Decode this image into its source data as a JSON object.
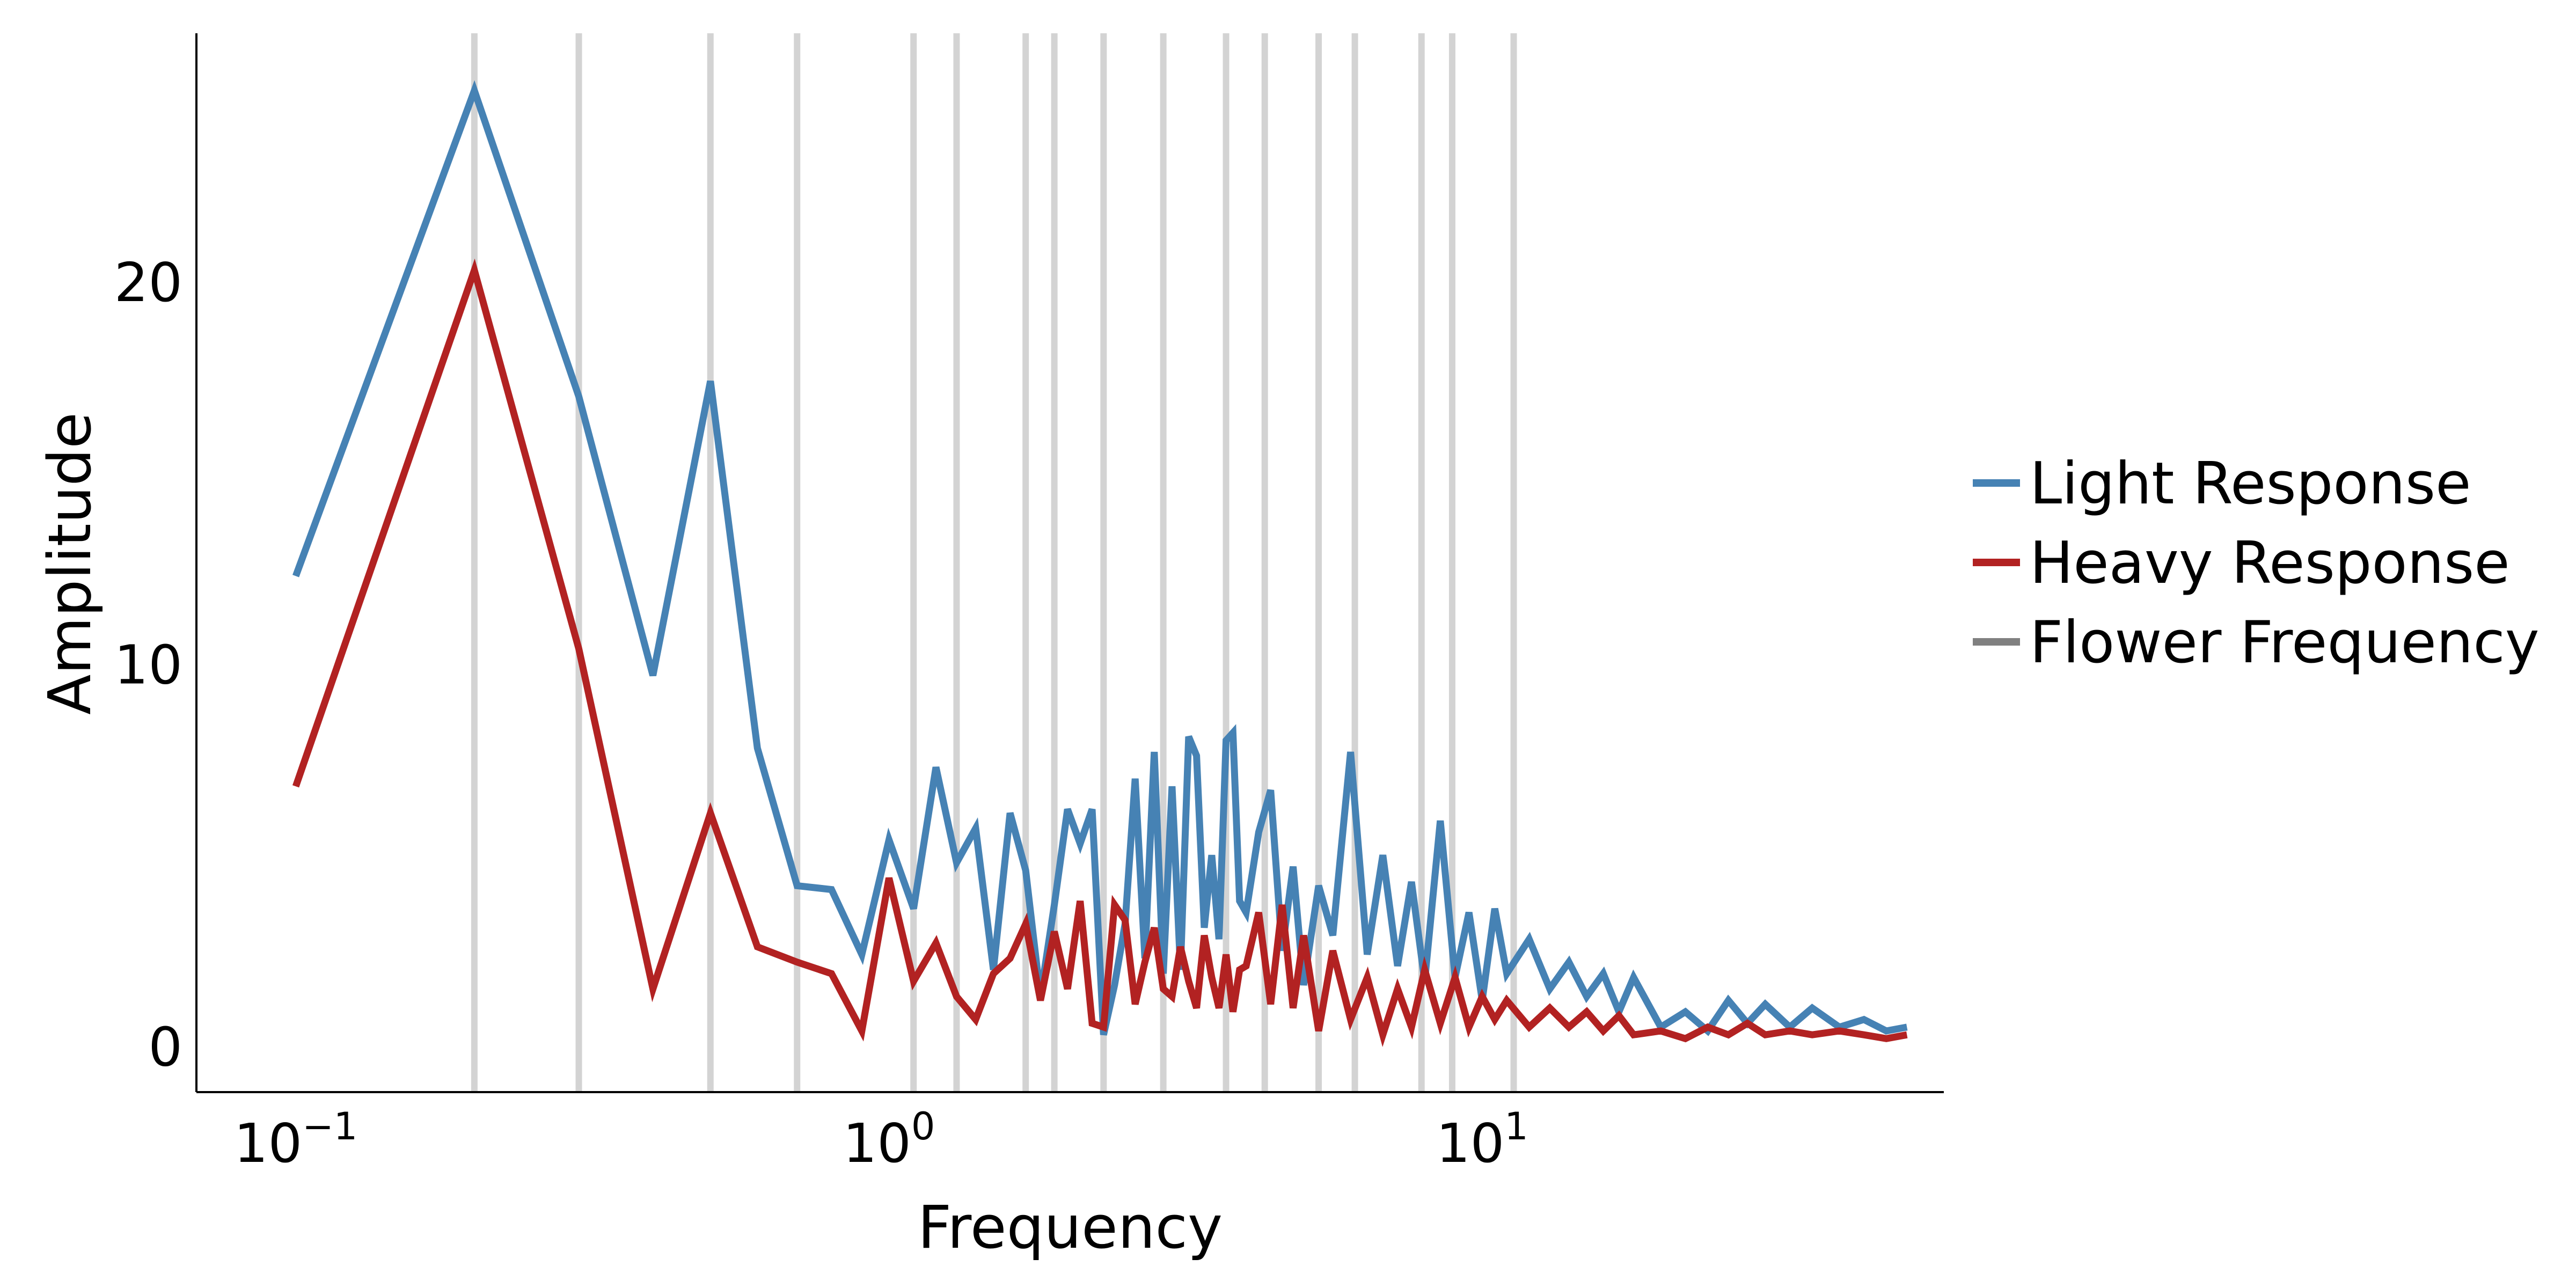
{
  "chart_data": {
    "type": "line",
    "x_scale": "log",
    "xlabel": "Frequency",
    "ylabel": "Amplitude",
    "xlim": [
      0.068,
      60
    ],
    "ylim": [
      -1.2,
      26.5
    ],
    "x_ticks": [
      {
        "value": 0.1,
        "base": "10",
        "exp": "−1"
      },
      {
        "value": 1,
        "base": "10",
        "exp": "0"
      },
      {
        "value": 10,
        "base": "10",
        "exp": "1"
      }
    ],
    "y_ticks": [
      0,
      10,
      20
    ],
    "grid": false,
    "legend_position": "right",
    "flower_frequencies": [
      0.2,
      0.3,
      0.5,
      0.7,
      1.1,
      1.3,
      1.7,
      1.9,
      2.3,
      2.9,
      3.7,
      4.3,
      5.3,
      6.1,
      7.9,
      8.9,
      11.3
    ],
    "series": [
      {
        "name": "Light Response",
        "color": "#4682b4",
        "x": [
          0.1,
          0.2,
          0.3,
          0.4,
          0.5,
          0.6,
          0.7,
          0.8,
          0.9,
          1.0,
          1.1,
          1.2,
          1.3,
          1.4,
          1.5,
          1.6,
          1.7,
          1.8,
          1.9,
          2.0,
          2.1,
          2.2,
          2.3,
          2.4,
          2.5,
          2.6,
          2.7,
          2.8,
          2.9,
          3.0,
          3.1,
          3.2,
          3.3,
          3.4,
          3.5,
          3.6,
          3.7,
          3.8,
          3.9,
          4.0,
          4.2,
          4.4,
          4.6,
          4.8,
          5.0,
          5.3,
          5.6,
          6.0,
          6.4,
          6.8,
          7.2,
          7.6,
          8.0,
          8.5,
          9.0,
          9.5,
          10.0,
          10.5,
          11.0,
          12.0,
          13.0,
          14.0,
          15.0,
          16.0,
          17.0,
          18.0,
          20.0,
          22.0,
          24.0,
          26.0,
          28.0,
          30.0,
          33.0,
          36.0,
          40.0,
          44.0,
          48.0,
          52.0
        ],
        "values": [
          12.3,
          25.0,
          17.0,
          9.7,
          17.4,
          7.8,
          4.2,
          4.1,
          2.4,
          5.4,
          3.6,
          7.3,
          4.8,
          5.7,
          2.0,
          6.1,
          4.6,
          1.3,
          3.7,
          6.2,
          5.3,
          6.2,
          0.3,
          1.6,
          3.2,
          7.0,
          2.3,
          7.7,
          1.9,
          6.8,
          2.0,
          8.1,
          7.6,
          3.1,
          5.0,
          2.8,
          8.0,
          8.2,
          3.8,
          3.5,
          5.6,
          6.7,
          2.5,
          4.7,
          1.6,
          4.2,
          2.9,
          7.7,
          2.4,
          5.0,
          2.1,
          4.3,
          1.7,
          5.9,
          1.8,
          3.5,
          1.2,
          3.6,
          1.9,
          2.8,
          1.5,
          2.2,
          1.3,
          1.9,
          0.9,
          1.8,
          0.5,
          0.9,
          0.4,
          1.2,
          0.6,
          1.1,
          0.5,
          1.0,
          0.5,
          0.7,
          0.4,
          0.5
        ]
      },
      {
        "name": "Heavy Response",
        "color": "#b22222",
        "x": [
          0.1,
          0.2,
          0.3,
          0.4,
          0.5,
          0.6,
          0.7,
          0.8,
          0.9,
          1.0,
          1.1,
          1.2,
          1.3,
          1.4,
          1.5,
          1.6,
          1.7,
          1.8,
          1.9,
          2.0,
          2.1,
          2.2,
          2.3,
          2.4,
          2.5,
          2.6,
          2.7,
          2.8,
          2.9,
          3.0,
          3.1,
          3.2,
          3.3,
          3.4,
          3.5,
          3.6,
          3.7,
          3.8,
          3.9,
          4.0,
          4.2,
          4.4,
          4.6,
          4.8,
          5.0,
          5.3,
          5.6,
          6.0,
          6.4,
          6.8,
          7.2,
          7.6,
          8.0,
          8.5,
          9.0,
          9.5,
          10.0,
          10.5,
          11.0,
          12.0,
          13.0,
          14.0,
          15.0,
          16.0,
          17.0,
          18.0,
          20.0,
          22.0,
          24.0,
          26.0,
          28.0,
          30.0,
          33.0,
          36.0,
          40.0,
          44.0,
          48.0,
          52.0
        ],
        "values": [
          6.8,
          20.3,
          10.4,
          1.5,
          6.1,
          2.6,
          2.2,
          1.9,
          0.4,
          4.4,
          1.7,
          2.7,
          1.3,
          0.7,
          1.9,
          2.3,
          3.2,
          1.2,
          3.0,
          1.5,
          3.8,
          0.6,
          0.5,
          3.7,
          3.3,
          1.1,
          2.2,
          3.1,
          1.5,
          1.3,
          2.6,
          1.7,
          1.0,
          2.9,
          1.8,
          1.0,
          2.4,
          0.9,
          2.0,
          2.1,
          3.5,
          1.1,
          3.7,
          1.0,
          2.9,
          0.4,
          2.5,
          0.7,
          1.8,
          0.3,
          1.5,
          0.5,
          2.0,
          0.6,
          1.8,
          0.5,
          1.3,
          0.7,
          1.2,
          0.5,
          1.0,
          0.5,
          0.9,
          0.4,
          0.8,
          0.3,
          0.4,
          0.2,
          0.5,
          0.3,
          0.6,
          0.3,
          0.4,
          0.3,
          0.4,
          0.3,
          0.2,
          0.3
        ]
      }
    ],
    "legend": [
      {
        "label": "Light Response",
        "color": "#4682b4"
      },
      {
        "label": "Heavy Response",
        "color": "#b22222"
      },
      {
        "label": "Flower Frequency",
        "color": "#808080"
      }
    ]
  }
}
